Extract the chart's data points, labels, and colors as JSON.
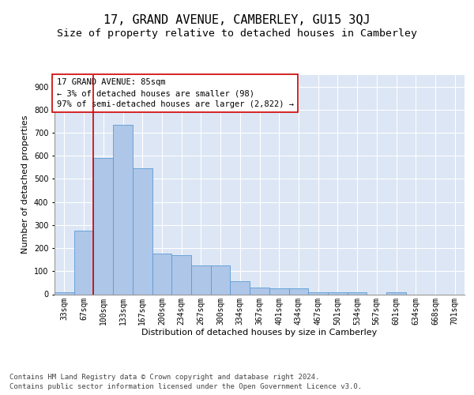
{
  "title_line1": "17, GRAND AVENUE, CAMBERLEY, GU15 3QJ",
  "title_line2": "Size of property relative to detached houses in Camberley",
  "xlabel": "Distribution of detached houses by size in Camberley",
  "ylabel": "Number of detached properties",
  "annotation_title": "17 GRAND AVENUE: 85sqm",
  "annotation_line2": "← 3% of detached houses are smaller (98)",
  "annotation_line3": "97% of semi-detached houses are larger (2,822) →",
  "bar_color": "#aec6e8",
  "bar_edge_color": "#5b9bd5",
  "vline_color": "#cc0000",
  "vline_x": 1.5,
  "bg_color": "#dce6f5",
  "categories": [
    "33sqm",
    "67sqm",
    "100sqm",
    "133sqm",
    "167sqm",
    "200sqm",
    "234sqm",
    "267sqm",
    "300sqm",
    "334sqm",
    "367sqm",
    "401sqm",
    "434sqm",
    "467sqm",
    "501sqm",
    "534sqm",
    "567sqm",
    "601sqm",
    "634sqm",
    "668sqm",
    "701sqm"
  ],
  "values": [
    8,
    275,
    590,
    735,
    545,
    175,
    170,
    125,
    125,
    55,
    30,
    25,
    25,
    8,
    8,
    8,
    0,
    8,
    0,
    0,
    0
  ],
  "ylim": [
    0,
    950
  ],
  "yticks": [
    0,
    100,
    200,
    300,
    400,
    500,
    600,
    700,
    800,
    900
  ],
  "footer_line1": "Contains HM Land Registry data © Crown copyright and database right 2024.",
  "footer_line2": "Contains public sector information licensed under the Open Government Licence v3.0.",
  "title_fontsize": 11,
  "subtitle_fontsize": 9.5,
  "axis_label_fontsize": 8,
  "tick_fontsize": 7,
  "annotation_fontsize": 7.5,
  "footer_fontsize": 6.5
}
